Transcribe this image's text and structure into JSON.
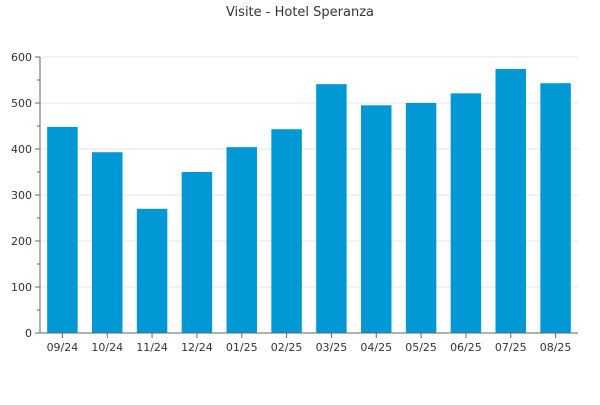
{
  "chart_data": {
    "type": "bar",
    "title": "Visite - Hotel Speranza",
    "xlabel": "",
    "ylabel": "",
    "categories": [
      "09/24",
      "10/24",
      "11/24",
      "12/24",
      "01/25",
      "02/25",
      "03/25",
      "04/25",
      "05/25",
      "06/25",
      "07/25",
      "08/25"
    ],
    "values": [
      448,
      393,
      270,
      350,
      404,
      443,
      541,
      495,
      500,
      521,
      574,
      543
    ],
    "ylim": [
      0,
      600
    ],
    "yticks": [
      0,
      100,
      200,
      300,
      400,
      500,
      600
    ],
    "grid": true,
    "legend": "none",
    "colors": {
      "bar": "#0099d6",
      "grid": "#e6e6e6",
      "axis": "#666666"
    }
  }
}
